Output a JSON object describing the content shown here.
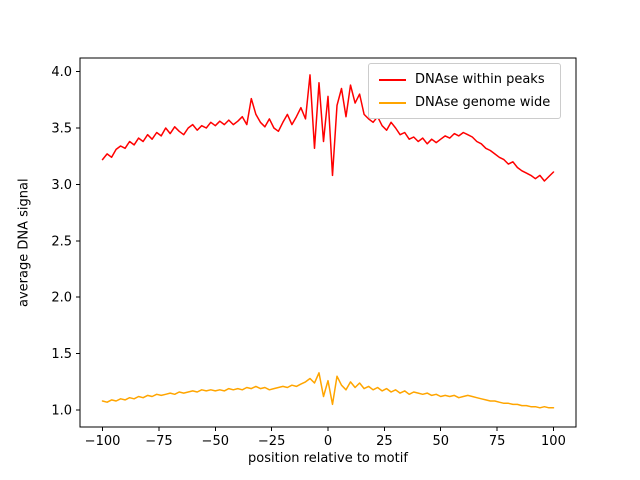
{
  "figure": {
    "background": "#ffffff"
  },
  "chart_data": {
    "type": "line",
    "title": "",
    "xlabel": "position relative to motif",
    "ylabel": "average DNA signal",
    "grid": false,
    "legend_position": "upper right",
    "xlim": [
      -110,
      110
    ],
    "ylim": [
      0.85,
      4.12
    ],
    "xticks": [
      -100,
      -75,
      -50,
      -25,
      0,
      25,
      50,
      75,
      100
    ],
    "xtick_labels": [
      "−100",
      "−75",
      "−50",
      "−25",
      "0",
      "25",
      "50",
      "75",
      "100"
    ],
    "yticks": [
      1.0,
      1.5,
      2.0,
      2.5,
      3.0,
      3.5,
      4.0
    ],
    "ytick_labels": [
      "1.0",
      "1.5",
      "2.0",
      "2.5",
      "3.0",
      "3.5",
      "4.0"
    ],
    "x": [
      -100,
      -98,
      -96,
      -94,
      -92,
      -90,
      -88,
      -86,
      -84,
      -82,
      -80,
      -78,
      -76,
      -74,
      -72,
      -70,
      -68,
      -66,
      -64,
      -62,
      -60,
      -58,
      -56,
      -54,
      -52,
      -50,
      -48,
      -46,
      -44,
      -42,
      -40,
      -38,
      -36,
      -34,
      -32,
      -30,
      -28,
      -26,
      -24,
      -22,
      -20,
      -18,
      -16,
      -14,
      -12,
      -10,
      -8,
      -6,
      -4,
      -2,
      0,
      2,
      4,
      6,
      8,
      10,
      12,
      14,
      16,
      18,
      20,
      22,
      24,
      26,
      28,
      30,
      32,
      34,
      36,
      38,
      40,
      42,
      44,
      46,
      48,
      50,
      52,
      54,
      56,
      58,
      60,
      62,
      64,
      66,
      68,
      70,
      72,
      74,
      76,
      78,
      80,
      82,
      84,
      86,
      88,
      90,
      92,
      94,
      96,
      98,
      100
    ],
    "series": [
      {
        "name": "DNAse within peaks",
        "color": "#ff0000",
        "values": [
          3.22,
          3.27,
          3.24,
          3.31,
          3.34,
          3.32,
          3.38,
          3.35,
          3.41,
          3.38,
          3.44,
          3.4,
          3.46,
          3.43,
          3.5,
          3.45,
          3.51,
          3.47,
          3.44,
          3.5,
          3.53,
          3.48,
          3.52,
          3.5,
          3.55,
          3.52,
          3.56,
          3.53,
          3.57,
          3.53,
          3.56,
          3.6,
          3.53,
          3.76,
          3.62,
          3.55,
          3.51,
          3.58,
          3.5,
          3.47,
          3.55,
          3.62,
          3.53,
          3.6,
          3.68,
          3.58,
          3.97,
          3.32,
          3.9,
          3.38,
          3.78,
          3.08,
          3.7,
          3.85,
          3.6,
          3.88,
          3.72,
          3.8,
          3.62,
          3.58,
          3.55,
          3.6,
          3.52,
          3.48,
          3.55,
          3.5,
          3.44,
          3.46,
          3.4,
          3.42,
          3.38,
          3.41,
          3.36,
          3.4,
          3.37,
          3.4,
          3.43,
          3.41,
          3.45,
          3.43,
          3.46,
          3.44,
          3.42,
          3.38,
          3.36,
          3.32,
          3.3,
          3.27,
          3.24,
          3.22,
          3.18,
          3.2,
          3.15,
          3.12,
          3.1,
          3.08,
          3.05,
          3.08,
          3.03,
          3.07,
          3.11
        ]
      },
      {
        "name": "DNAse genome wide",
        "color": "#ffa500",
        "values": [
          1.08,
          1.07,
          1.09,
          1.08,
          1.1,
          1.09,
          1.11,
          1.1,
          1.12,
          1.11,
          1.13,
          1.12,
          1.14,
          1.13,
          1.14,
          1.15,
          1.14,
          1.16,
          1.15,
          1.16,
          1.17,
          1.16,
          1.18,
          1.17,
          1.18,
          1.17,
          1.18,
          1.17,
          1.19,
          1.18,
          1.19,
          1.18,
          1.2,
          1.19,
          1.21,
          1.19,
          1.2,
          1.18,
          1.19,
          1.2,
          1.21,
          1.2,
          1.22,
          1.21,
          1.23,
          1.25,
          1.28,
          1.24,
          1.33,
          1.12,
          1.26,
          1.05,
          1.3,
          1.22,
          1.18,
          1.25,
          1.2,
          1.24,
          1.19,
          1.21,
          1.18,
          1.2,
          1.17,
          1.19,
          1.16,
          1.18,
          1.15,
          1.17,
          1.14,
          1.16,
          1.15,
          1.14,
          1.15,
          1.13,
          1.14,
          1.12,
          1.13,
          1.12,
          1.13,
          1.11,
          1.12,
          1.13,
          1.12,
          1.11,
          1.1,
          1.09,
          1.08,
          1.08,
          1.07,
          1.06,
          1.06,
          1.05,
          1.05,
          1.04,
          1.04,
          1.03,
          1.03,
          1.02,
          1.03,
          1.02,
          1.02
        ]
      }
    ]
  }
}
